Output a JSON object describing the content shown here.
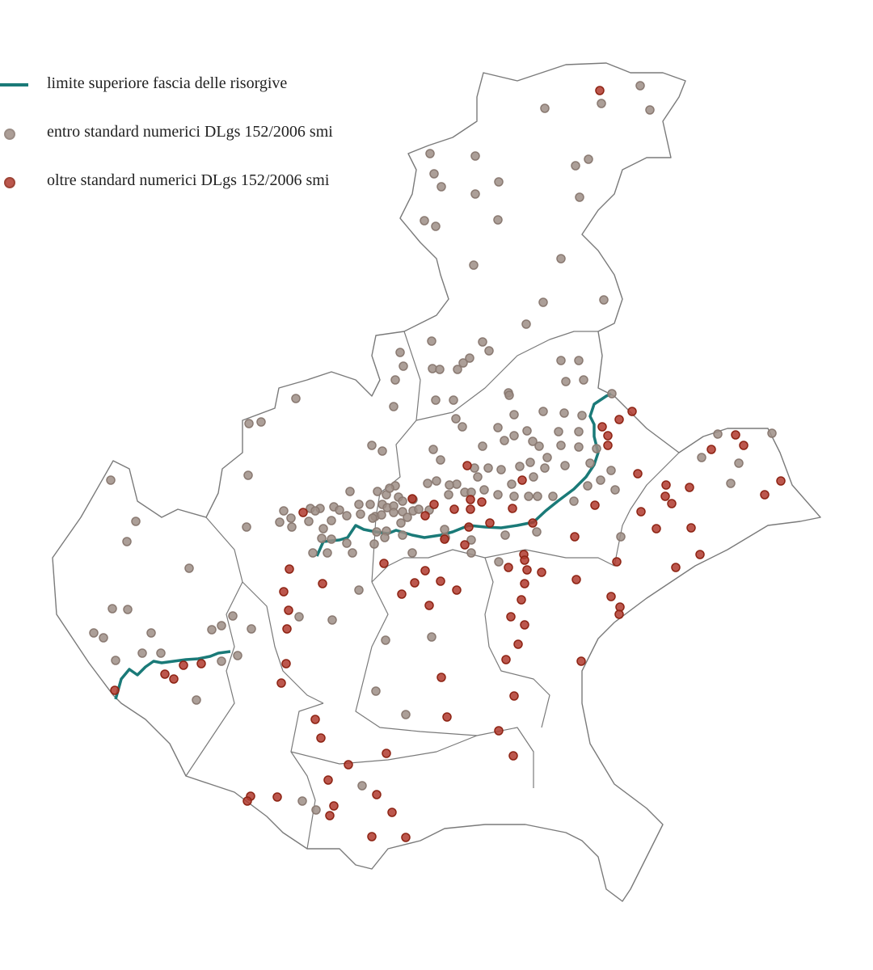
{
  "legend": {
    "items": [
      {
        "label": "limite superiore fascia delle risorgive",
        "symbol": "line",
        "color": "#1a7a78"
      },
      {
        "label": "entro standard numerici DLgs 152/2006 smi",
        "symbol": "dot",
        "color": "#9e8e86",
        "stroke": "#8a7a72"
      },
      {
        "label": "oltre standard numerici DLgs 152/2006 smi",
        "symbol": "dot",
        "color": "#b03a2e",
        "stroke": "#8e2414"
      }
    ]
  },
  "colors": {
    "boundary": "#7a7a7a",
    "background": "#ffffff"
  }
}
